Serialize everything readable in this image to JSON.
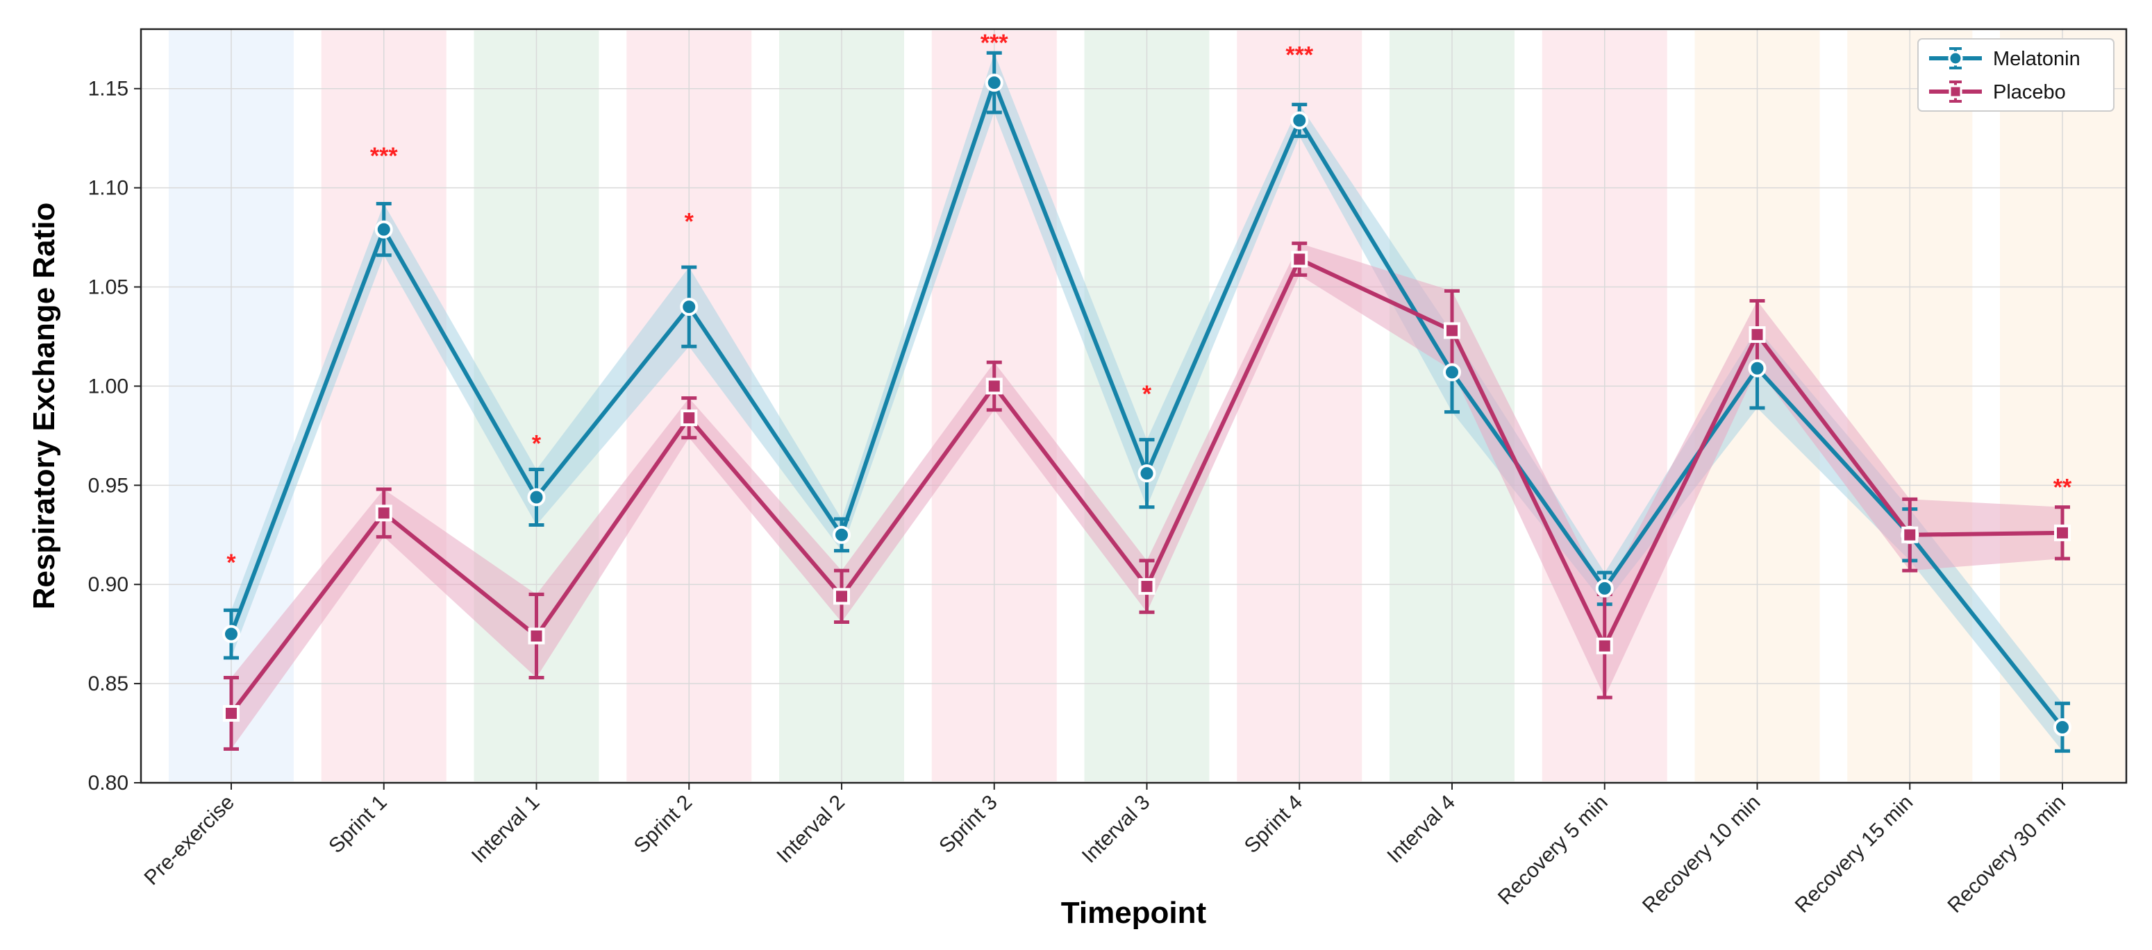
{
  "chart_data": {
    "type": "line",
    "title": "",
    "xlabel": "Timepoint",
    "ylabel": "Respiratory Exchange Ratio",
    "ylim": [
      0.8,
      1.18
    ],
    "yticks": [
      "0.80",
      "0.85",
      "0.90",
      "0.95",
      "1.00",
      "1.05",
      "1.10",
      "1.15"
    ],
    "yticks_values": [
      0.8,
      0.85,
      0.9,
      0.95,
      1.0,
      1.05,
      1.1,
      1.15
    ],
    "grid": true,
    "legend_position": "top-right",
    "categories": [
      "Pre-exercise",
      "Sprint 1",
      "Interval 1",
      "Sprint 2",
      "Interval 2",
      "Sprint 3",
      "Interval 3",
      "Sprint 4",
      "Interval 4",
      "Recovery 5 min",
      "Recovery 10 min",
      "Recovery 15 min",
      "Recovery 30 min"
    ],
    "band_colors": [
      "#eef5fd",
      "#fdeaee",
      "#e9f4ec",
      "#fdeaee",
      "#e9f4ec",
      "#fdeaee",
      "#e9f4ec",
      "#fdeaee",
      "#e9f4ec",
      "#fdeaee",
      "#fef6ec",
      "#fef6ec",
      "#fef6ec"
    ],
    "series": [
      {
        "name": "Melatonin",
        "color": "#1583a8",
        "fill": "#a9d3e3",
        "marker": "circle",
        "values": [
          0.875,
          1.079,
          0.944,
          1.04,
          0.925,
          1.153,
          0.956,
          1.134,
          1.007,
          0.898,
          1.009,
          0.925,
          0.828
        ],
        "errors": [
          0.012,
          0.013,
          0.014,
          0.02,
          0.008,
          0.015,
          0.017,
          0.008,
          0.02,
          0.008,
          0.02,
          0.013,
          0.012
        ]
      },
      {
        "name": "Placebo",
        "color": "#b8336a",
        "fill": "#e8a9c2",
        "marker": "square",
        "values": [
          0.835,
          0.936,
          0.874,
          0.984,
          0.894,
          1.0,
          0.899,
          1.064,
          1.028,
          0.869,
          1.026,
          0.925,
          0.926
        ],
        "errors": [
          0.018,
          0.012,
          0.021,
          0.01,
          0.013,
          0.012,
          0.013,
          0.008,
          0.02,
          0.026,
          0.017,
          0.018,
          0.013
        ]
      }
    ],
    "annotations": [
      {
        "index": 0,
        "text": "*",
        "y": 0.912
      },
      {
        "index": 1,
        "text": "***",
        "y": 1.117
      },
      {
        "index": 2,
        "text": "*",
        "y": 0.972
      },
      {
        "index": 3,
        "text": "*",
        "y": 1.084
      },
      {
        "index": 5,
        "text": "***",
        "y": 1.174
      },
      {
        "index": 6,
        "text": "*",
        "y": 0.997
      },
      {
        "index": 7,
        "text": "***",
        "y": 1.168
      },
      {
        "index": 12,
        "text": "**",
        "y": 0.95
      }
    ]
  }
}
